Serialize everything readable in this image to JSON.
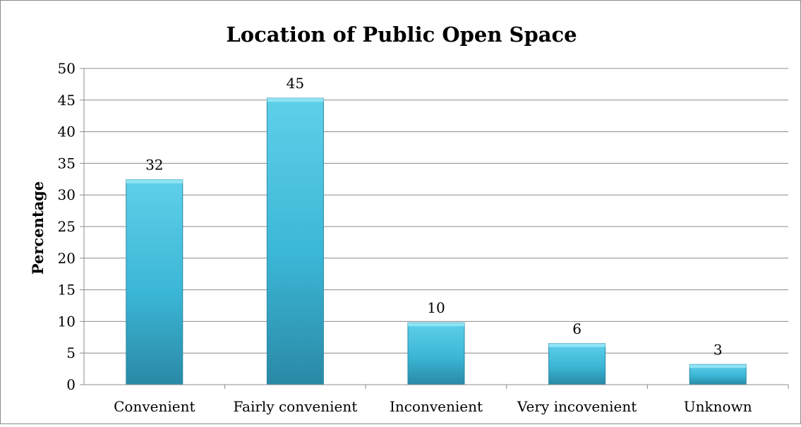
{
  "chart_data": {
    "type": "bar",
    "title": "Location of Public Open Space",
    "xlabel": "",
    "ylabel": "Percentage",
    "categories": [
      "Convenient",
      "Fairly convenient",
      "Inconvenient",
      "Very incovenient",
      "Unknown"
    ],
    "values": [
      32.4,
      45.3,
      9.8,
      6.5,
      3.2
    ],
    "data_labels": [
      "32",
      "45",
      "10",
      "6",
      "3"
    ],
    "ylim": [
      0,
      50
    ],
    "yticks": [
      "0",
      "5",
      "10",
      "15",
      "20",
      "25",
      "30",
      "35",
      "40",
      "45",
      "50"
    ],
    "grid": true,
    "legend": "none",
    "colors": {
      "bar_light": "#5fd0ea",
      "bar_mid": "#3bb6d6",
      "bar_dark": "#2a89a6",
      "bar_top": "#8ee4f5",
      "grid": "#8c8c8c",
      "text": "#000000"
    }
  }
}
